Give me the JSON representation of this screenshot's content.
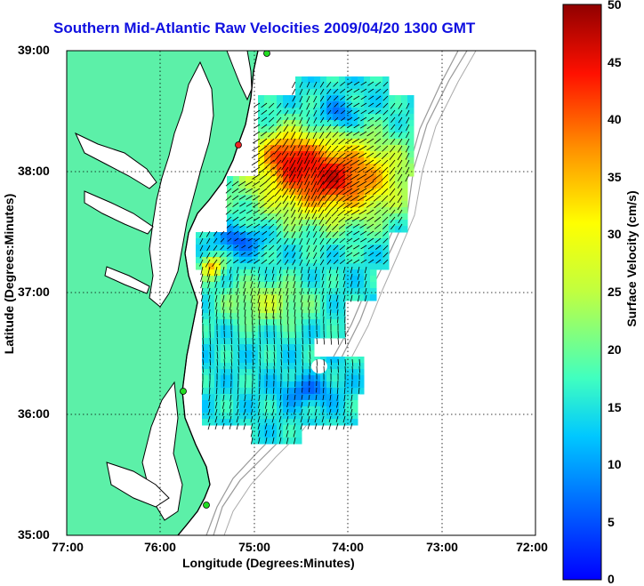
{
  "title": "Southern Mid-Atlantic Raw Velocities 2009/04/20 1300 GMT",
  "axes": {
    "xlabel": "Longitude (Degrees:Minutes)",
    "ylabel": "Latitude (Degrees:Minutes)",
    "xticks": [
      "77:00",
      "76:00",
      "75:00",
      "74:00",
      "73:00",
      "72:00"
    ],
    "yticks": [
      "39:00",
      "38:00",
      "37:00",
      "36:00",
      "35:00"
    ]
  },
  "colorbar": {
    "label": "Surface Velocity (cm/s)",
    "ticks": [
      "50",
      "45",
      "40",
      "35",
      "30",
      "25",
      "20",
      "15",
      "10",
      "5",
      "0"
    ],
    "min": 0,
    "max": 50
  },
  "colors": {
    "title": "#1010e0",
    "land": "#5cf0a8",
    "coast": "#000000",
    "bathymetry": "#999999",
    "grid": "#000000",
    "station": "#22dd22",
    "station_alt": "#ee2222"
  }
}
